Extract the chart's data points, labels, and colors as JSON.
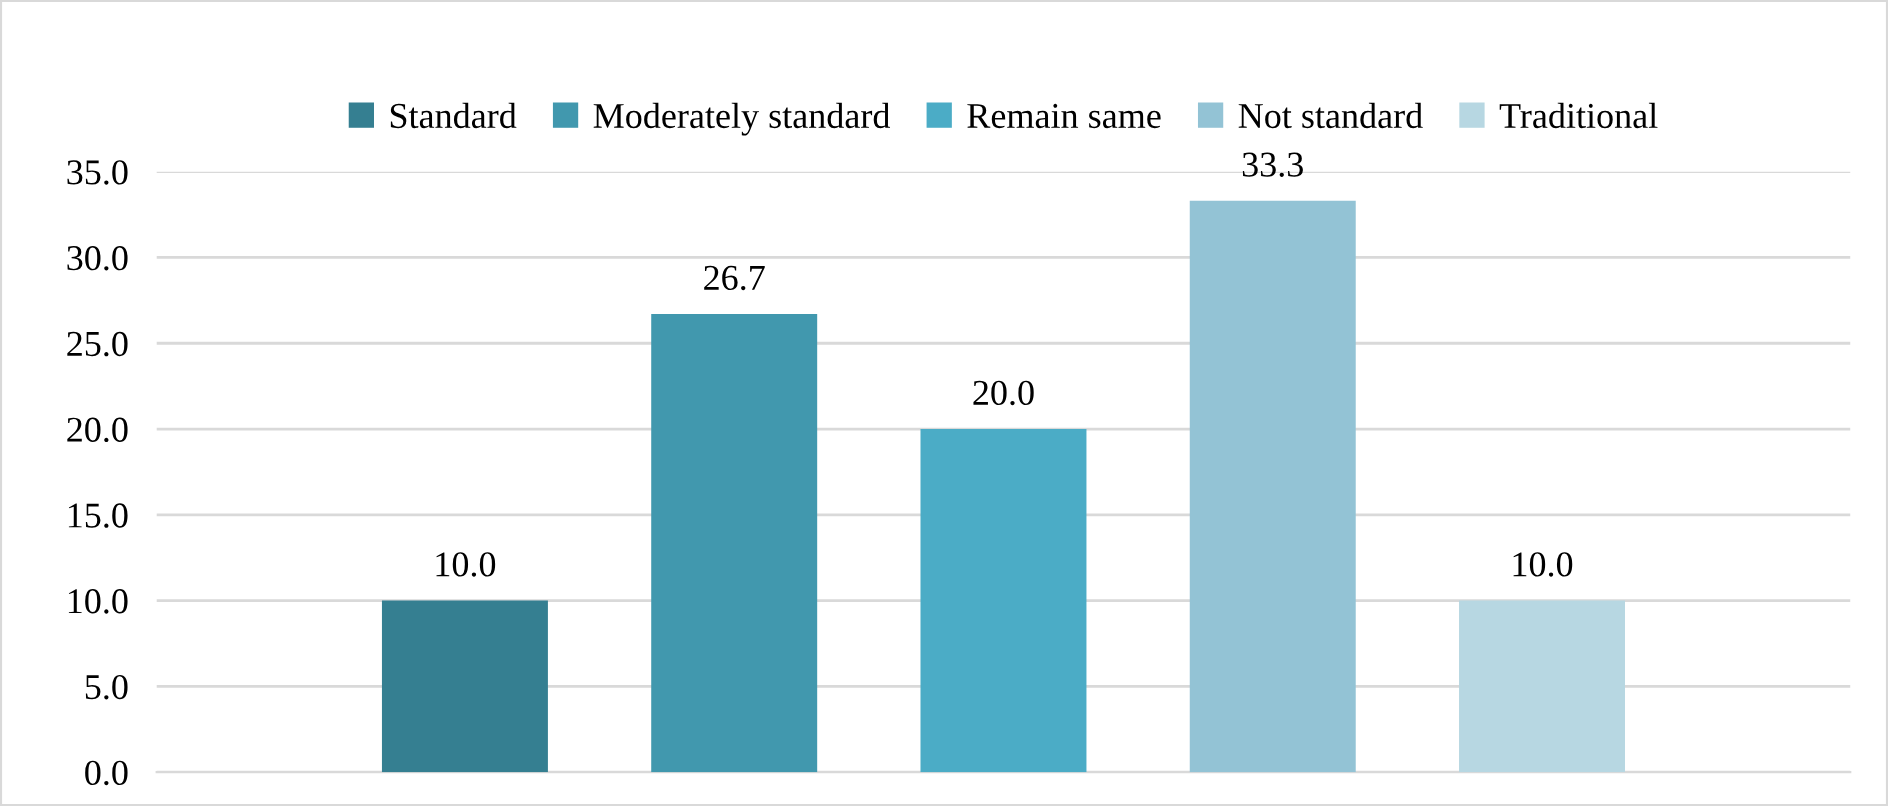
{
  "chart_data": {
    "type": "bar",
    "categories": [
      null
    ],
    "series": [
      {
        "name": "Standard",
        "color": "#357f91",
        "values": [
          10.0
        ],
        "value_labels": [
          "10.0"
        ]
      },
      {
        "name": "Moderately standard",
        "color": "#4198ae",
        "values": [
          26.7
        ],
        "value_labels": [
          "26.7"
        ]
      },
      {
        "name": "Remain same",
        "color": "#4bacc6",
        "values": [
          20.0
        ],
        "value_labels": [
          "20.0"
        ]
      },
      {
        "name": "Not standard",
        "color": "#93c3d5",
        "values": [
          33.3
        ],
        "value_labels": [
          "33.3"
        ]
      },
      {
        "name": "Traditional",
        "color": "#b7d7e2",
        "values": [
          10.0
        ],
        "value_labels": [
          "10.0"
        ]
      }
    ],
    "ylim": [
      0,
      35
    ],
    "yticks": [
      {
        "value": 0,
        "label": "0.0"
      },
      {
        "value": 5,
        "label": "5.0"
      },
      {
        "value": 10,
        "label": "10.0"
      },
      {
        "value": 15,
        "label": "15.0"
      },
      {
        "value": 20,
        "label": "20.0"
      },
      {
        "value": 25,
        "label": "25.0"
      },
      {
        "value": 30,
        "label": "30.0"
      },
      {
        "value": 35,
        "label": "35.0"
      }
    ],
    "grid": "y",
    "legend": "top",
    "tick_labels": "y"
  }
}
